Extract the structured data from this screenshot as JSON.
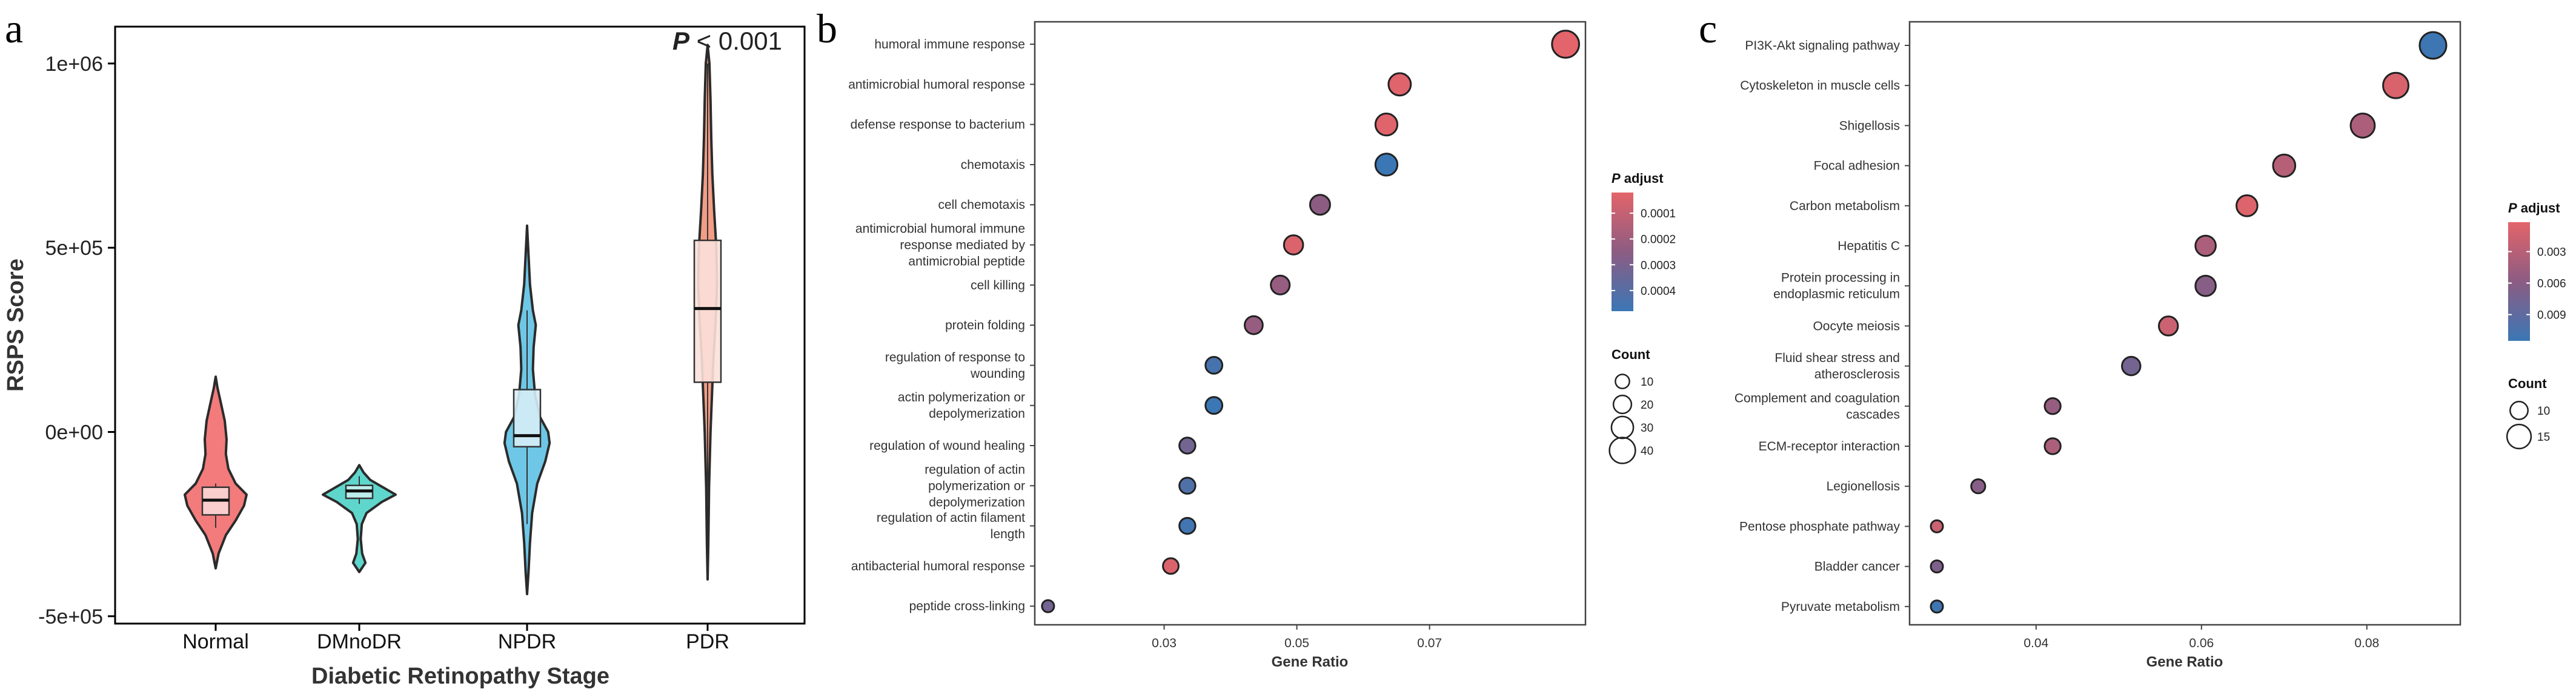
{
  "chart_data": [
    {
      "panel": "a",
      "type": "violin",
      "title": "",
      "xlabel": "Diabetic Retinopathy Stage",
      "ylabel": "RSPS Score",
      "annotation": {
        "bold": "P",
        "rest": " < 0.001"
      },
      "ylim": [
        -520000,
        1100000
      ],
      "yticks": [
        {
          "value": 1000000,
          "label": "1e+06"
        },
        {
          "value": 500000,
          "label": "5e+05"
        },
        {
          "value": 0,
          "label": "0e+00"
        },
        {
          "value": -500000,
          "label": "-5e+05"
        }
      ],
      "groups": [
        {
          "name": "Normal",
          "fill": "#f37b7b",
          "light": "#fcd7d7",
          "min": -370000,
          "max": 150000,
          "q1": -225000,
          "median": -185000,
          "q3": -150000,
          "whisker_low": -260000,
          "whisker_high": -140000,
          "density": [
            [
              -370000,
              0
            ],
            [
              -330000,
              0.08
            ],
            [
              -280000,
              0.28
            ],
            [
              -240000,
              0.55
            ],
            [
              -200000,
              0.78
            ],
            [
              -170000,
              0.85
            ],
            [
              -140000,
              0.55
            ],
            [
              -100000,
              0.35
            ],
            [
              -60000,
              0.28
            ],
            [
              -20000,
              0.3
            ],
            [
              30000,
              0.25
            ],
            [
              80000,
              0.14
            ],
            [
              120000,
              0.05
            ],
            [
              150000,
              0
            ]
          ]
        },
        {
          "name": "DMnoDR",
          "fill": "#5fd6cc",
          "light": "#c7f1ee",
          "min": -380000,
          "max": -90000,
          "q1": -180000,
          "median": -160000,
          "q3": -145000,
          "whisker_low": -195000,
          "whisker_high": -120000,
          "density": [
            [
              -380000,
              0
            ],
            [
              -355000,
              0.17
            ],
            [
              -330000,
              0.08
            ],
            [
              -290000,
              0.04
            ],
            [
              -250000,
              0.07
            ],
            [
              -220000,
              0.2
            ],
            [
              -190000,
              0.62
            ],
            [
              -170000,
              1.0
            ],
            [
              -150000,
              0.65
            ],
            [
              -130000,
              0.3
            ],
            [
              -110000,
              0.12
            ],
            [
              -90000,
              0
            ]
          ]
        },
        {
          "name": "NPDR",
          "fill": "#6ec7e6",
          "light": "#d6edf7",
          "min": -440000,
          "max": 560000,
          "q1": -40000,
          "median": -10000,
          "q3": 115000,
          "whisker_low": -250000,
          "whisker_high": 330000,
          "density": [
            [
              -440000,
              0
            ],
            [
              -380000,
              0.04
            ],
            [
              -300000,
              0.08
            ],
            [
              -220000,
              0.14
            ],
            [
              -140000,
              0.28
            ],
            [
              -80000,
              0.5
            ],
            [
              -30000,
              0.62
            ],
            [
              0,
              0.58
            ],
            [
              40000,
              0.36
            ],
            [
              100000,
              0.22
            ],
            [
              170000,
              0.16
            ],
            [
              230000,
              0.18
            ],
            [
              290000,
              0.24
            ],
            [
              330000,
              0.16
            ],
            [
              400000,
              0.08
            ],
            [
              480000,
              0.04
            ],
            [
              560000,
              0
            ]
          ]
        },
        {
          "name": "PDR",
          "fill": "#f29d86",
          "light": "#fbe1da",
          "min": -400000,
          "max": 1050000,
          "q1": 135000,
          "median": 335000,
          "q3": 520000,
          "whisker_low": -200000,
          "whisker_high": 1000000,
          "density": [
            [
              -400000,
              0
            ],
            [
              -300000,
              0.02
            ],
            [
              -150000,
              0.04
            ],
            [
              0,
              0.08
            ],
            [
              100000,
              0.12
            ],
            [
              200000,
              0.16
            ],
            [
              300000,
              0.22
            ],
            [
              400000,
              0.26
            ],
            [
              500000,
              0.24
            ],
            [
              600000,
              0.18
            ],
            [
              700000,
              0.13
            ],
            [
              800000,
              0.1
            ],
            [
              900000,
              0.08
            ],
            [
              1000000,
              0.05
            ],
            [
              1050000,
              0
            ]
          ]
        }
      ]
    },
    {
      "panel": "b",
      "type": "scatter",
      "xlabel": "Gene Ratio",
      "ylabel": "",
      "xlim": [
        0.0105,
        0.0935
      ],
      "xticks": [
        {
          "value": 0.03,
          "label": "0.03"
        },
        {
          "value": 0.05,
          "label": "0.05"
        },
        {
          "value": 0.07,
          "label": "0.07"
        }
      ],
      "legend_color_title": {
        "bold": "P",
        "rest": " adjust"
      },
      "legend_color_ticks": [
        {
          "value": 0.0001,
          "label": "0.0001"
        },
        {
          "value": 0.0002,
          "label": "0.0002"
        },
        {
          "value": 0.0003,
          "label": "0.0003"
        },
        {
          "value": 0.0004,
          "label": "0.0004"
        }
      ],
      "color_range": [
        2e-05,
        0.00048
      ],
      "color_low": "#e3646a",
      "color_mid": "#8c5c83",
      "color_high": "#3b77b5",
      "legend_size_title": "Count",
      "legend_size_ticks": [
        10,
        20,
        30,
        40
      ],
      "count_range": [
        5,
        45
      ],
      "terms": [
        {
          "label": [
            "humoral immune response"
          ],
          "x": 0.0905,
          "count": 43,
          "padj": 2e-05
        },
        {
          "label": [
            "antimicrobial humoral response"
          ],
          "x": 0.0655,
          "count": 31,
          "padj": 3e-05
        },
        {
          "label": [
            "defense response to bacterium"
          ],
          "x": 0.0635,
          "count": 30,
          "padj": 3e-05
        },
        {
          "label": [
            "chemotaxis"
          ],
          "x": 0.0635,
          "count": 30,
          "padj": 0.00048
        },
        {
          "label": [
            "cell chemotaxis"
          ],
          "x": 0.0535,
          "count": 25,
          "padj": 0.00025
        },
        {
          "label": [
            "antimicrobial humoral immune",
            "response mediated by",
            "antimicrobial peptide"
          ],
          "x": 0.0495,
          "count": 23,
          "padj": 4e-05
        },
        {
          "label": [
            "cell killing"
          ],
          "x": 0.0475,
          "count": 22,
          "padj": 0.00022
        },
        {
          "label": [
            "protein folding"
          ],
          "x": 0.0435,
          "count": 20,
          "padj": 0.00022
        },
        {
          "label": [
            "regulation of response to",
            "wounding"
          ],
          "x": 0.0375,
          "count": 17,
          "padj": 0.00045
        },
        {
          "label": [
            "actin polymerization or",
            "depolymerization"
          ],
          "x": 0.0375,
          "count": 17,
          "padj": 0.00048
        },
        {
          "label": [
            "regulation of wound healing"
          ],
          "x": 0.0335,
          "count": 15,
          "padj": 0.00032
        },
        {
          "label": [
            "regulation of actin",
            "polymerization or",
            "depolymerization"
          ],
          "x": 0.0335,
          "count": 15,
          "padj": 0.00042
        },
        {
          "label": [
            "regulation of actin filament",
            "length"
          ],
          "x": 0.0335,
          "count": 15,
          "padj": 0.00046
        },
        {
          "label": [
            "antibacterial humoral response"
          ],
          "x": 0.031,
          "count": 14,
          "padj": 4e-05
        },
        {
          "label": [
            "peptide cross-linking"
          ],
          "x": 0.0125,
          "count": 5,
          "padj": 0.00032
        }
      ]
    },
    {
      "panel": "c",
      "type": "scatter",
      "xlabel": "Gene Ratio",
      "ylabel": "",
      "xlim": [
        0.0247,
        0.0913
      ],
      "xticks": [
        {
          "value": 0.04,
          "label": "0.04"
        },
        {
          "value": 0.06,
          "label": "0.06"
        },
        {
          "value": 0.08,
          "label": "0.08"
        }
      ],
      "legend_color_title": {
        "bold": "P",
        "rest": " adjust"
      },
      "legend_color_ticks": [
        {
          "value": 0.003,
          "label": "0.003"
        },
        {
          "value": 0.006,
          "label": "0.006"
        },
        {
          "value": 0.009,
          "label": "0.009"
        }
      ],
      "color_range": [
        0.0002,
        0.0115
      ],
      "color_low": "#e3646a",
      "color_mid": "#8c5c83",
      "color_high": "#3b77b5",
      "legend_size_title": "Count",
      "legend_size_ticks": [
        10,
        15
      ],
      "count_range": [
        5,
        17
      ],
      "terms": [
        {
          "label": [
            "PI3K-Akt signaling pathway"
          ],
          "x": 0.088,
          "count": 17,
          "padj": 0.0113
        },
        {
          "label": [
            "Cytoskeleton in muscle cells"
          ],
          "x": 0.0835,
          "count": 16,
          "padj": 0.0009
        },
        {
          "label": [
            "Shigellosis"
          ],
          "x": 0.0795,
          "count": 15,
          "padj": 0.0038
        },
        {
          "label": [
            "Focal adhesion"
          ],
          "x": 0.07,
          "count": 13.5,
          "padj": 0.0032
        },
        {
          "label": [
            "Carbon metabolism"
          ],
          "x": 0.0655,
          "count": 12.5,
          "padj": 0.0005
        },
        {
          "label": [
            "Hepatitis C"
          ],
          "x": 0.0605,
          "count": 12,
          "padj": 0.0038
        },
        {
          "label": [
            "Protein processing in",
            "endoplasmic reticulum"
          ],
          "x": 0.0605,
          "count": 12,
          "padj": 0.0062
        },
        {
          "label": [
            "Oocyte meiosis"
          ],
          "x": 0.056,
          "count": 11,
          "padj": 0.0018
        },
        {
          "label": [
            "Fluid shear stress and",
            "atherosclerosis"
          ],
          "x": 0.0515,
          "count": 10.5,
          "padj": 0.0076
        },
        {
          "label": [
            "Complement and coagulation",
            "cascades"
          ],
          "x": 0.042,
          "count": 8.5,
          "padj": 0.0052
        },
        {
          "label": [
            "ECM-receptor interaction"
          ],
          "x": 0.042,
          "count": 8.5,
          "padj": 0.0038
        },
        {
          "label": [
            "Legionellosis"
          ],
          "x": 0.033,
          "count": 7,
          "padj": 0.0062
        },
        {
          "label": [
            "Pentose phosphate pathway"
          ],
          "x": 0.028,
          "count": 5.5,
          "padj": 0.0018
        },
        {
          "label": [
            "Bladder cancer"
          ],
          "x": 0.028,
          "count": 5.5,
          "padj": 0.0068
        },
        {
          "label": [
            "Pyruvate metabolism"
          ],
          "x": 0.028,
          "count": 5.5,
          "padj": 0.0112
        }
      ]
    }
  ],
  "panel_letters": [
    "a",
    "b",
    "c"
  ]
}
